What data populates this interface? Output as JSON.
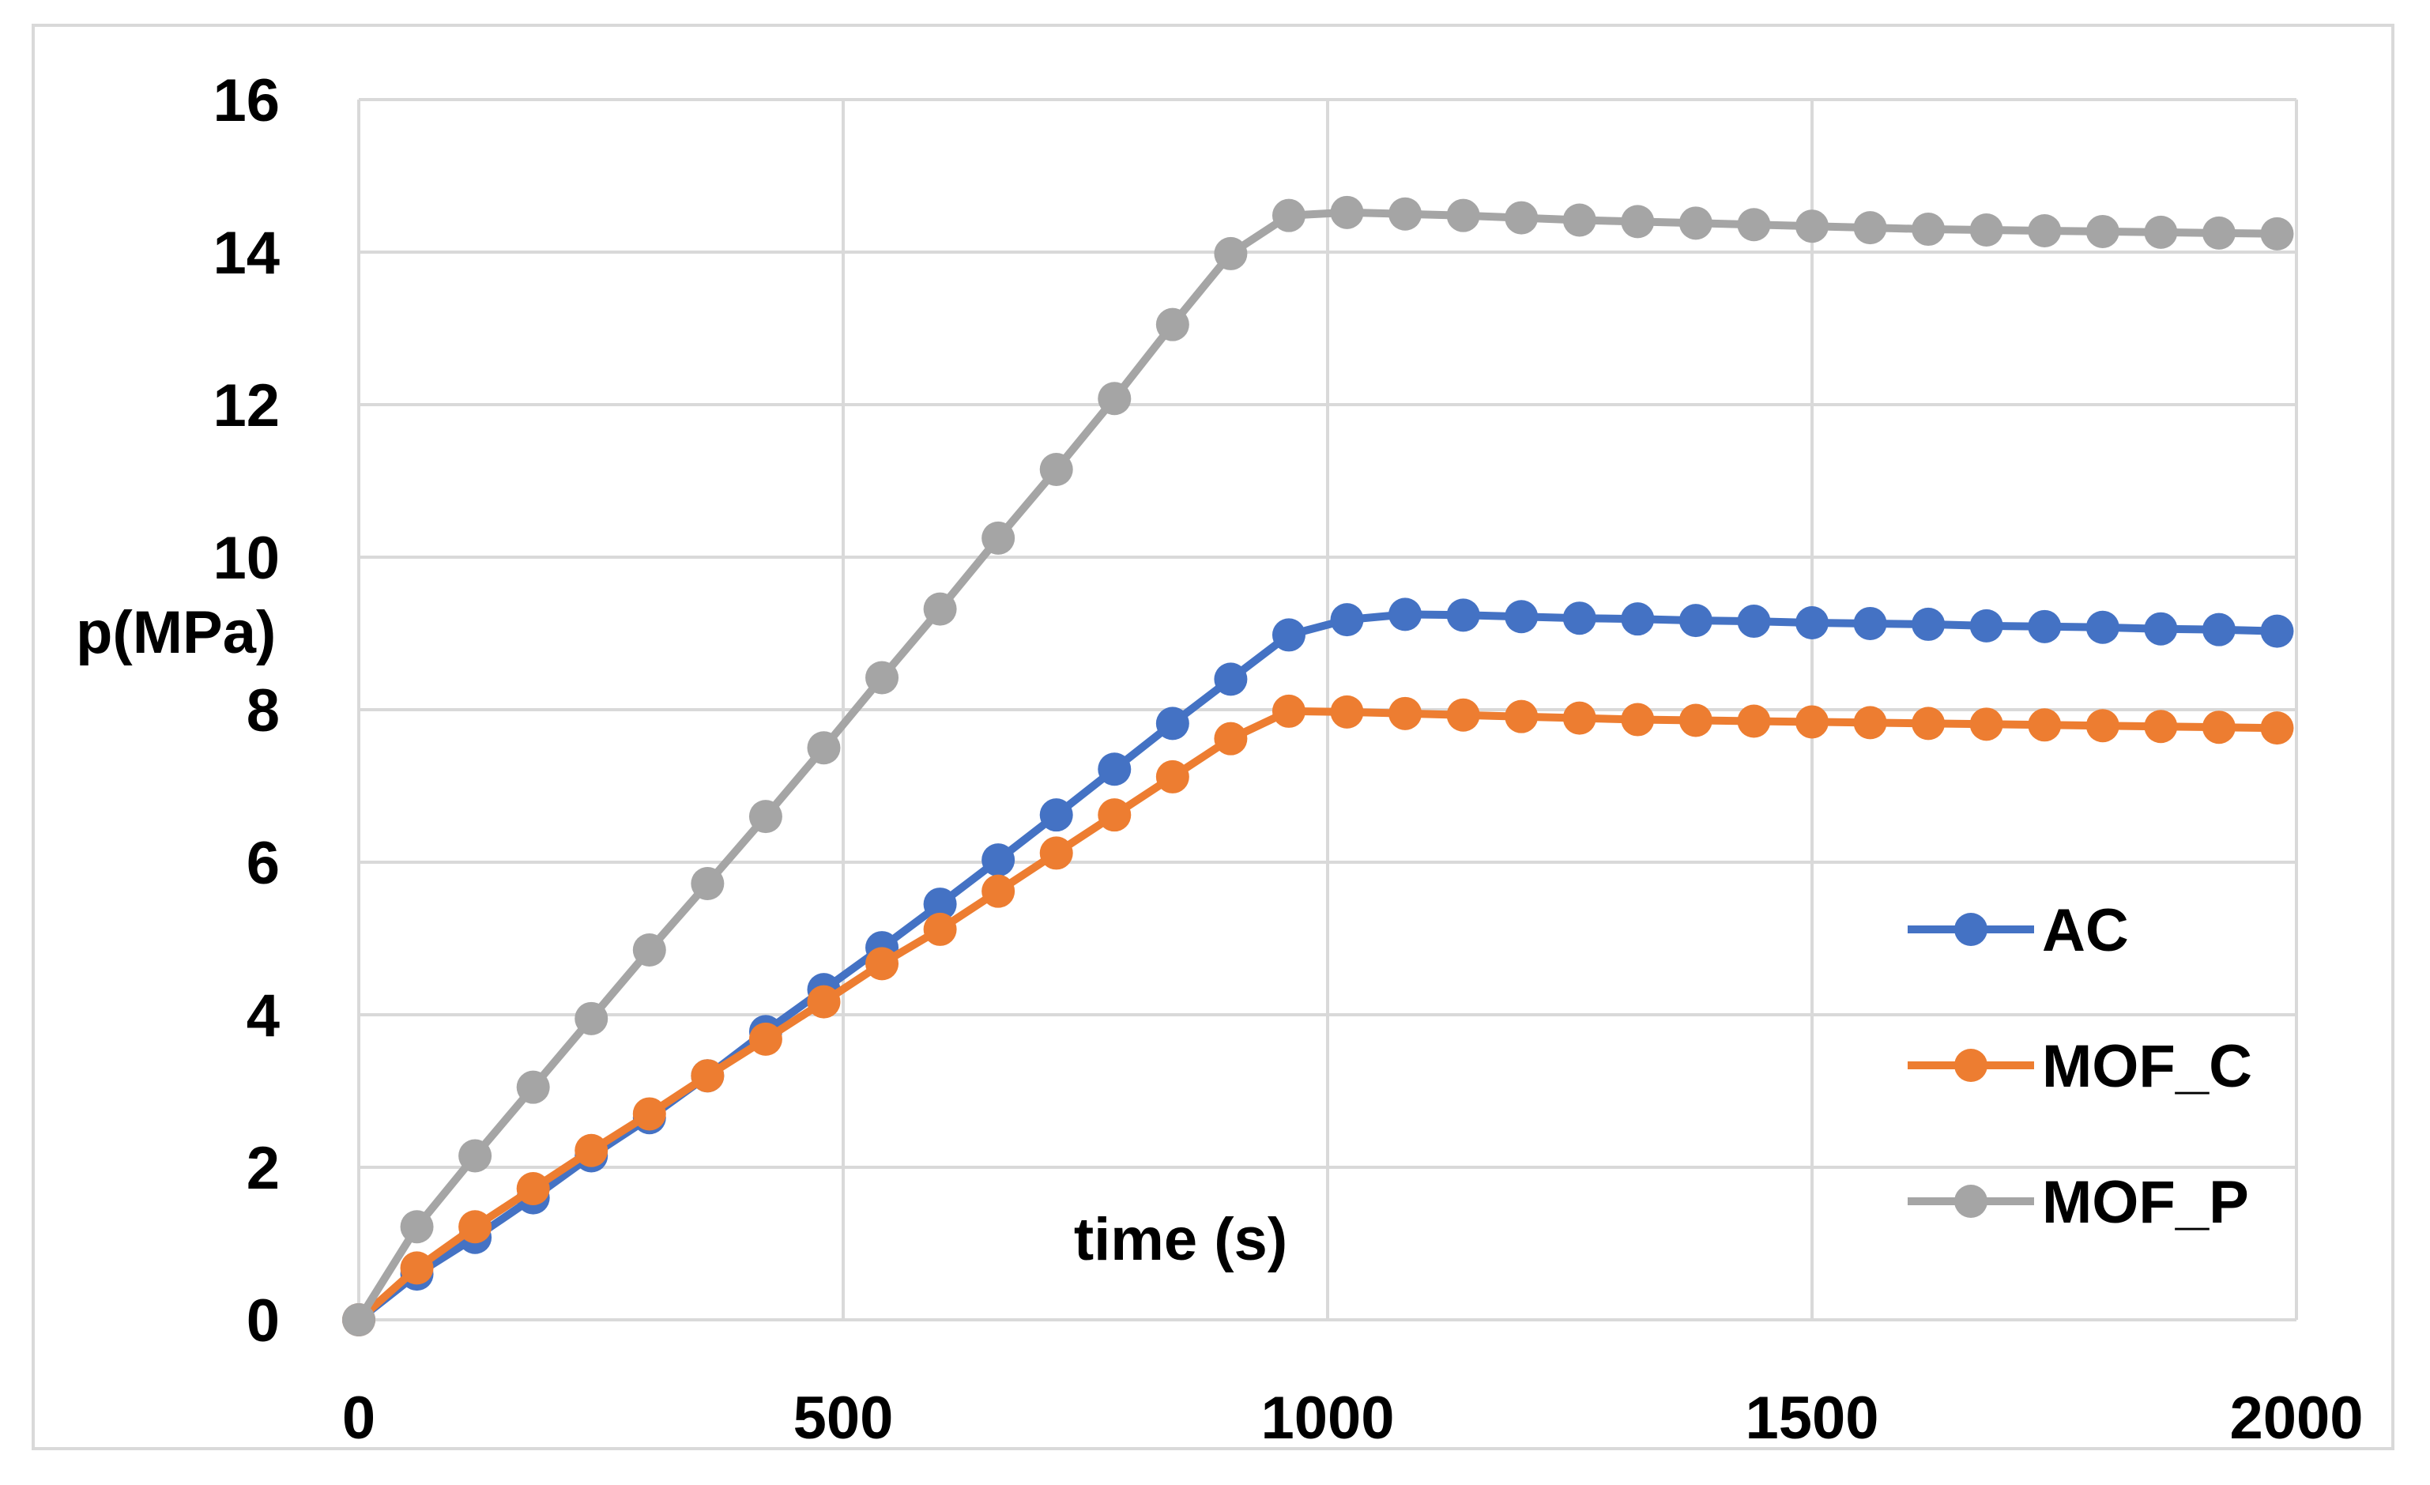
{
  "chart_data": {
    "type": "line",
    "title": "",
    "xlabel": "time (s)",
    "ylabel": "p(MPa)",
    "xlim": [
      0,
      2000
    ],
    "ylim": [
      0,
      16
    ],
    "xticks": [
      0,
      500,
      1000,
      1500,
      2000
    ],
    "yticks": [
      0,
      2,
      4,
      6,
      8,
      10,
      12,
      14,
      16
    ],
    "x_tick_labels": [
      "0",
      "500",
      "1000",
      "1500",
      "2000"
    ],
    "y_tick_labels": [
      "0",
      "2",
      "4",
      "6",
      "8",
      "10",
      "12",
      "14",
      "16"
    ],
    "grid": true,
    "legend": "right",
    "markers": "circle",
    "x": [
      0,
      60,
      120,
      180,
      240,
      300,
      360,
      420,
      480,
      540,
      600,
      660,
      720,
      780,
      840,
      900,
      960,
      1020,
      1080,
      1140,
      1200,
      1260,
      1320,
      1380,
      1440,
      1500,
      1560,
      1620,
      1680,
      1740,
      1800,
      1860,
      1920,
      1980
    ],
    "series": [
      {
        "name": "AC",
        "color": "#4472c4",
        "values": [
          0,
          0.6,
          1.08,
          1.6,
          2.15,
          2.65,
          3.2,
          3.78,
          4.33,
          4.88,
          5.45,
          6.03,
          6.62,
          7.22,
          7.82,
          8.4,
          8.98,
          9.18,
          9.25,
          9.24,
          9.22,
          9.2,
          9.19,
          9.17,
          9.16,
          9.14,
          9.13,
          9.12,
          9.1,
          9.09,
          9.08,
          9.06,
          9.05,
          9.03
        ]
      },
      {
        "name": "MOF_C",
        "color": "#ed7d31",
        "values": [
          0,
          0.68,
          1.22,
          1.72,
          2.22,
          2.7,
          3.2,
          3.68,
          4.17,
          4.67,
          5.12,
          5.62,
          6.12,
          6.62,
          7.12,
          7.62,
          7.98,
          7.97,
          7.95,
          7.93,
          7.91,
          7.89,
          7.87,
          7.86,
          7.85,
          7.84,
          7.83,
          7.82,
          7.81,
          7.8,
          7.79,
          7.78,
          7.77,
          7.76
        ]
      },
      {
        "name": "MOF_P",
        "color": "#a5a5a5",
        "values": [
          0,
          1.22,
          2.15,
          3.05,
          3.95,
          4.85,
          5.72,
          6.6,
          7.5,
          8.42,
          9.32,
          10.25,
          11.15,
          12.08,
          13.05,
          13.98,
          14.48,
          14.52,
          14.5,
          14.48,
          14.45,
          14.42,
          14.4,
          14.38,
          14.36,
          14.34,
          14.32,
          14.3,
          14.29,
          14.28,
          14.27,
          14.26,
          14.25,
          14.24
        ]
      }
    ]
  }
}
